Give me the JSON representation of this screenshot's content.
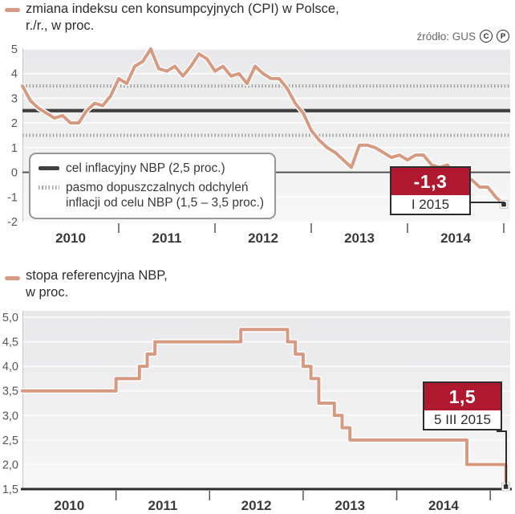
{
  "header": {
    "title_line1": "zmiana indeksu cen konsumpcyjnych (CPI) w Polsce,",
    "title_line2": "r./r., w proc.",
    "source_label": "źródło: GUS",
    "source_icons": [
      "C",
      "P"
    ]
  },
  "chart1": {
    "legend": {
      "target_label": "cel inflacyjny NBP (2,5 proc.)",
      "band_label_line1": "pasmo dopuszczalnych odchyleń",
      "band_label_line2": "inflacji od celu NBP (1,5 – 3,5 proc.)"
    },
    "callout": {
      "value": "-1,3",
      "date": "I 2015"
    }
  },
  "chart2": {
    "title_line1": "stopa referencyjna NBP,",
    "title_line2": "w proc.",
    "callout": {
      "value": "1,5",
      "date": "5 III 2015"
    }
  },
  "colors": {
    "series_line": "#d69a82",
    "target_line": "#414144",
    "band_dotted": "#a3a3a3",
    "callout_red": "#ae1930",
    "axis_dark": "#2c2c2e",
    "plot_bg_top": "#e8e8ea",
    "plot_bg_bottom": "#f7f7f7",
    "gridline": "#fafafa"
  },
  "chart_data": [
    {
      "type": "line",
      "title": "zmiana indeksu cen konsumpcyjnych (CPI) w Polsce, r./r., w proc.",
      "x_start": "2010-01",
      "x_interval": "month",
      "x_tick_labels": [
        "2010",
        "2011",
        "2012",
        "2013",
        "2014"
      ],
      "ylim": [
        -2,
        5
      ],
      "y_tick_values": [
        5,
        4,
        3,
        2,
        1,
        0,
        -1,
        -2
      ],
      "y_tick_labels": [
        "5",
        "4",
        "3",
        "2",
        "1",
        "0",
        "-1",
        "-2"
      ],
      "grid": "horizontal",
      "legend_position": "inside-bottom-left",
      "zero_line": 0,
      "reference_lines": [
        {
          "label": "cel inflacyjny NBP (2,5 proc.)",
          "value": 2.5,
          "style": "solid-dark"
        },
        {
          "label": "pasmo dopuszczalnych odchyleń inflacji od celu NBP (1,5 – 3,5 proc.)",
          "values": [
            3.5,
            1.5
          ],
          "style": "dotted-gray"
        }
      ],
      "series": [
        {
          "name": "CPI w Polsce r./r. w proc.",
          "color": "#d69a82",
          "values": [
            3.5,
            2.9,
            2.6,
            2.4,
            2.2,
            2.3,
            2.0,
            2.0,
            2.5,
            2.8,
            2.7,
            3.1,
            3.8,
            3.6,
            4.3,
            4.5,
            5.0,
            4.2,
            4.1,
            4.3,
            3.9,
            4.3,
            4.8,
            4.6,
            4.1,
            4.3,
            3.9,
            4.0,
            3.6,
            4.3,
            4.0,
            3.8,
            3.8,
            3.4,
            2.8,
            2.4,
            1.7,
            1.3,
            1.0,
            0.8,
            0.5,
            0.2,
            1.1,
            1.1,
            1.0,
            0.8,
            0.6,
            0.7,
            0.5,
            0.7,
            0.7,
            0.3,
            0.2,
            0.3,
            -0.2,
            -0.3,
            -0.3,
            -0.6,
            -0.6,
            -1.0,
            -1.3
          ]
        }
      ],
      "end_annotation": {
        "value": -1.3,
        "value_label": "-1,3",
        "date_label": "I 2015"
      }
    },
    {
      "type": "step-line",
      "title": "stopa referencyjna NBP, w proc.",
      "x_start": "2010-01",
      "x_interval": "month",
      "x_tick_labels": [
        "2010",
        "2011",
        "2012",
        "2013",
        "2014"
      ],
      "ylim": [
        1.5,
        5.0
      ],
      "y_tick_values": [
        5.0,
        4.5,
        4.0,
        3.5,
        3.0,
        2.5,
        2.0,
        1.5
      ],
      "y_tick_labels": [
        "5,0",
        "4,5",
        "4,0",
        "3,5",
        "3,0",
        "2,5",
        "2,0",
        "1,5"
      ],
      "grid": "horizontal",
      "baseline": 1.5,
      "series": [
        {
          "name": "stopa referencyjna NBP w proc.",
          "color": "#d69a82",
          "values": [
            3.5,
            3.5,
            3.5,
            3.5,
            3.5,
            3.5,
            3.5,
            3.5,
            3.5,
            3.5,
            3.5,
            3.5,
            3.75,
            3.75,
            3.75,
            4.0,
            4.25,
            4.5,
            4.5,
            4.5,
            4.5,
            4.5,
            4.5,
            4.5,
            4.5,
            4.5,
            4.5,
            4.5,
            4.75,
            4.75,
            4.75,
            4.75,
            4.75,
            4.75,
            4.5,
            4.25,
            4.0,
            3.75,
            3.25,
            3.25,
            3.0,
            2.75,
            2.5,
            2.5,
            2.5,
            2.5,
            2.5,
            2.5,
            2.5,
            2.5,
            2.5,
            2.5,
            2.5,
            2.5,
            2.5,
            2.5,
            2.5,
            2.0,
            2.0,
            2.0,
            2.0,
            2.0,
            1.5
          ]
        }
      ],
      "end_annotation": {
        "value": 1.5,
        "value_label": "1,5",
        "date_label": "5 III 2015"
      }
    }
  ]
}
